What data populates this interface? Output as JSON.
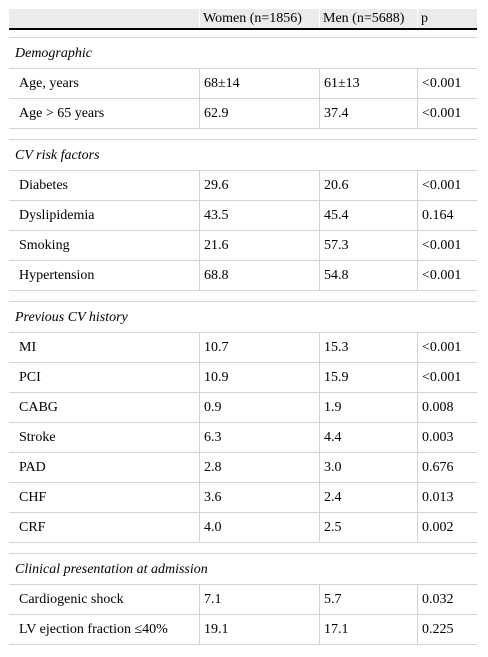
{
  "header": {
    "col_label": "",
    "col_women": "Women (n=1856)",
    "col_men": "Men (n=5688)",
    "col_p": "p"
  },
  "sections": [
    {
      "title": "Demographic",
      "rows": [
        {
          "label": "Age, years",
          "women": "68±14",
          "men": "61±13",
          "p": "<0.001"
        },
        {
          "label": "Age > 65 years",
          "women": "62.9",
          "men": "37.4",
          "p": "<0.001"
        }
      ]
    },
    {
      "title": "CV risk factors",
      "rows": [
        {
          "label": "Diabetes",
          "women": "29.6",
          "men": "20.6",
          "p": "<0.001"
        },
        {
          "label": "Dyslipidemia",
          "women": "43.5",
          "men": "45.4",
          "p": "0.164"
        },
        {
          "label": "Smoking",
          "women": "21.6",
          "men": "57.3",
          "p": "<0.001"
        },
        {
          "label": "Hypertension",
          "women": "68.8",
          "men": "54.8",
          "p": "<0.001"
        }
      ]
    },
    {
      "title": "Previous CV history",
      "rows": [
        {
          "label": "MI",
          "women": "10.7",
          "men": "15.3",
          "p": "<0.001"
        },
        {
          "label": "PCI",
          "women": "10.9",
          "men": "15.9",
          "p": "<0.001"
        },
        {
          "label": "CABG",
          "women": "0.9",
          "men": "1.9",
          "p": "0.008"
        },
        {
          "label": "Stroke",
          "women": "6.3",
          "men": "4.4",
          "p": "0.003"
        },
        {
          "label": "PAD",
          "women": "2.8",
          "men": "3.0",
          "p": "0.676"
        },
        {
          "label": "CHF",
          "women": "3.6",
          "men": "2.4",
          "p": "0.013"
        },
        {
          "label": "CRF",
          "women": "4.0",
          "men": "2.5",
          "p": "0.002"
        }
      ]
    },
    {
      "title": "Clinical presentation at admission",
      "rows": [
        {
          "label": "Cardiogenic shock",
          "women": "7.1",
          "men": "5.7",
          "p": "0.032"
        },
        {
          "label": "LV ejection fraction ≤40%",
          "women": "19.1",
          "men": "17.1",
          "p": "0.225"
        }
      ]
    }
  ]
}
